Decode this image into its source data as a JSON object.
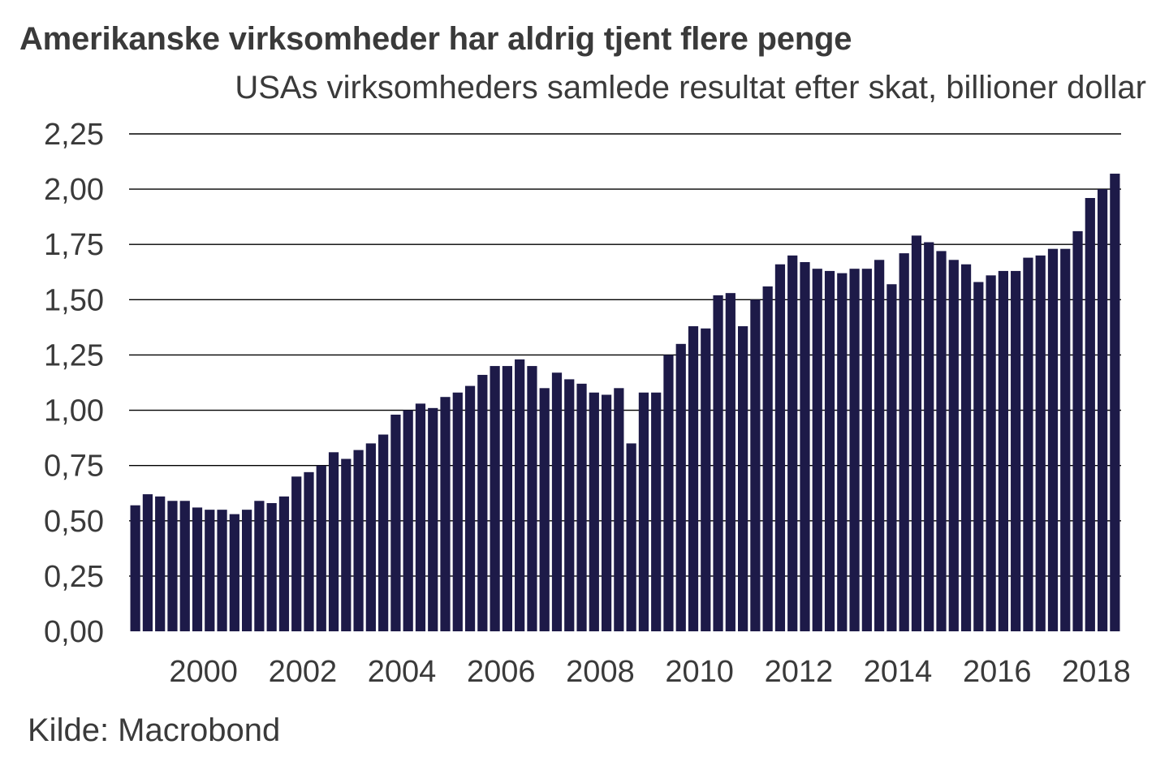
{
  "title": "Amerikanske virksomheder har aldrig tjent flere penge",
  "subtitle": "USAs virksomheders samlede resultat efter skat, billioner dollar",
  "source": "Kilde: Macrobond",
  "colors": {
    "bar": "#1d1a48",
    "grid": "#000000",
    "text": "#3a3a3a"
  },
  "chart_data": {
    "type": "bar",
    "x_labels": [
      "2000",
      "2002",
      "2004",
      "2006",
      "2008",
      "2010",
      "2012",
      "2014",
      "2016",
      "2018"
    ],
    "y_tick_labels": [
      "0,00",
      "0,25",
      "0,50",
      "0,75",
      "1,00",
      "1,25",
      "1,50",
      "1,75",
      "2,00",
      "2,25"
    ],
    "ylim": [
      0,
      2.25
    ],
    "grid": true,
    "frequency": "quarterly",
    "start": "1999 Q1",
    "values": [
      0.57,
      0.62,
      0.61,
      0.59,
      0.59,
      0.56,
      0.55,
      0.55,
      0.53,
      0.55,
      0.59,
      0.58,
      0.61,
      0.7,
      0.72,
      0.75,
      0.81,
      0.78,
      0.82,
      0.85,
      0.89,
      0.98,
      1.0,
      1.03,
      1.01,
      1.06,
      1.08,
      1.11,
      1.16,
      1.2,
      1.2,
      1.23,
      1.2,
      1.1,
      1.17,
      1.14,
      1.12,
      1.08,
      1.07,
      1.1,
      0.85,
      1.08,
      1.08,
      1.25,
      1.3,
      1.38,
      1.37,
      1.52,
      1.53,
      1.38,
      1.5,
      1.56,
      1.66,
      1.7,
      1.67,
      1.64,
      1.63,
      1.62,
      1.64,
      1.64,
      1.68,
      1.57,
      1.71,
      1.79,
      1.76,
      1.72,
      1.68,
      1.66,
      1.58,
      1.61,
      1.63,
      1.63,
      1.69,
      1.7,
      1.73,
      1.73,
      1.81,
      1.96,
      2.0,
      2.07
    ]
  }
}
